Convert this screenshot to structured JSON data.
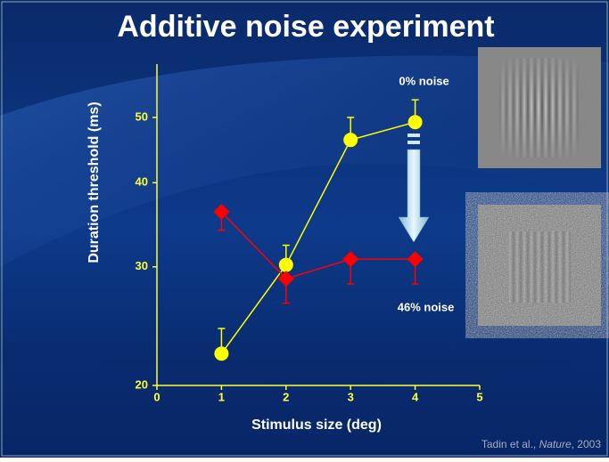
{
  "chart_data": {
    "type": "line",
    "title": "Additive noise experiment",
    "xlabel": "Stimulus size (deg)",
    "ylabel": "Duration threshold (ms)",
    "x": [
      1,
      2,
      3,
      4
    ],
    "xlim": [
      0,
      5
    ],
    "xticks": [
      0,
      1,
      2,
      3,
      4,
      5
    ],
    "ylim": [
      20,
      60
    ],
    "yticks": [
      20,
      30,
      40,
      50
    ],
    "log_y": true,
    "axis_color": "#ffff33",
    "series": [
      {
        "name": "0% noise",
        "color": "#ffff00",
        "marker": "circle",
        "error_direction": "up",
        "values": [
          22.3,
          30.2,
          46.3,
          49.2
        ],
        "errors": [
          2.0,
          2.1,
          3.7,
          3.9
        ]
      },
      {
        "name": "46% noise",
        "color": "#ff0000",
        "marker": "diamond",
        "error_direction": "down",
        "values": [
          36.2,
          28.8,
          30.8,
          30.8
        ],
        "errors": [
          2.2,
          2.3,
          2.5,
          2.5
        ]
      }
    ],
    "citation": {
      "authors": "Tadin et al., ",
      "journal": "Nature",
      "year": ", 2003"
    }
  }
}
